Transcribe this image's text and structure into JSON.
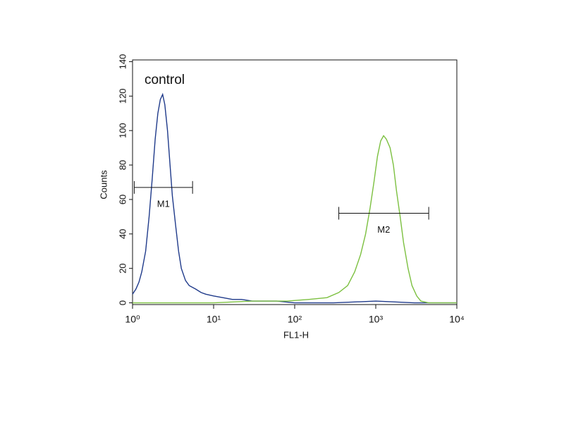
{
  "chart_data": {
    "type": "histogram-overlay",
    "annotation": "control",
    "xlabel": "FL1-H",
    "ylabel": "Counts",
    "xscale": "log",
    "xlim": [
      1,
      10000
    ],
    "xticks": [
      {
        "value": 1,
        "label": "10⁰"
      },
      {
        "value": 10,
        "label": "10¹"
      },
      {
        "value": 100,
        "label": "10²"
      },
      {
        "value": 1000,
        "label": "10³"
      },
      {
        "value": 10000,
        "label": "10⁴"
      }
    ],
    "ylim": [
      -1,
      141
    ],
    "yticks": [
      0,
      20,
      40,
      60,
      80,
      100,
      120,
      140
    ],
    "series": [
      {
        "color": "#1f3a8a",
        "x": [
          1.0,
          1.1,
          1.2,
          1.3,
          1.45,
          1.6,
          1.75,
          1.9,
          2.05,
          2.2,
          2.35,
          2.5,
          2.7,
          2.9,
          3.1,
          3.4,
          3.7,
          4.0,
          4.5,
          5,
          6,
          7,
          8,
          10,
          13,
          17,
          22,
          30,
          40,
          60,
          100,
          300,
          1000,
          3000,
          10000
        ],
        "values": [
          5,
          8,
          12,
          18,
          30,
          50,
          72,
          95,
          110,
          118,
          121,
          115,
          100,
          80,
          62,
          45,
          30,
          20,
          13,
          10,
          8,
          6,
          5,
          4,
          3,
          2,
          2,
          1,
          1,
          1,
          0,
          0,
          1,
          0,
          0
        ]
      },
      {
        "color": "#7cc040",
        "x": [
          1,
          10,
          30,
          80,
          150,
          250,
          350,
          450,
          550,
          650,
          750,
          850,
          950,
          1050,
          1150,
          1250,
          1350,
          1500,
          1650,
          1800,
          2000,
          2200,
          2500,
          2800,
          3200,
          3600,
          4500,
          10000
        ],
        "values": [
          0,
          0,
          1,
          1,
          2,
          3,
          6,
          10,
          18,
          28,
          40,
          55,
          70,
          85,
          94,
          97,
          95,
          90,
          80,
          65,
          50,
          35,
          20,
          10,
          4,
          1,
          0,
          0
        ]
      }
    ],
    "markers": [
      {
        "label": "M1",
        "x": [
          1.05,
          5.5
        ],
        "y": 67
      },
      {
        "label": "M2",
        "x": [
          350,
          4500
        ],
        "y": 52
      }
    ]
  }
}
